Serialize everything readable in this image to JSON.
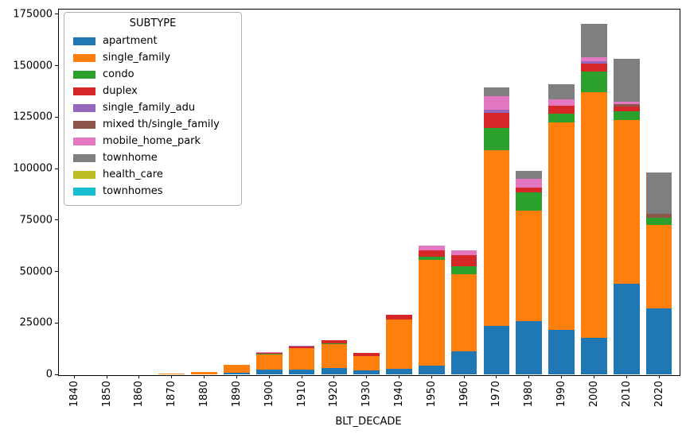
{
  "chart_data": {
    "type": "bar",
    "stacked": true,
    "title": "",
    "xlabel": "BLT_DECADE",
    "ylabel": "",
    "ylim": [
      0,
      177700
    ],
    "grid": false,
    "yticks": [
      0,
      25000,
      50000,
      75000,
      100000,
      125000,
      150000,
      175000
    ],
    "categories": [
      "1840",
      "1850",
      "1860",
      "1870",
      "1880",
      "1890",
      "1900",
      "1910",
      "1920",
      "1930",
      "1940",
      "1950",
      "1960",
      "1970",
      "1980",
      "1990",
      "2000",
      "2010",
      "2020"
    ],
    "legend": {
      "title": "SUBTYPE",
      "position": "upper left"
    },
    "series": [
      {
        "name": "apartment",
        "color": "#1f77b4",
        "values": [
          0,
          0,
          0,
          0,
          0,
          800,
          2200,
          2500,
          3100,
          2000,
          2800,
          4100,
          11400,
          23500,
          25700,
          21500,
          17700,
          44100,
          31900
        ]
      },
      {
        "name": "single_family",
        "color": "#ff7f0e",
        "values": [
          0,
          0,
          0,
          500,
          1100,
          3700,
          7400,
          10100,
          11700,
          7000,
          23700,
          51700,
          37300,
          85500,
          53800,
          101000,
          119300,
          79600,
          40700
        ]
      },
      {
        "name": "condo",
        "color": "#2ca02c",
        "values": [
          0,
          0,
          0,
          0,
          0,
          0,
          300,
          0,
          250,
          0,
          0,
          1200,
          3900,
          10600,
          9000,
          4400,
          10300,
          4300,
          3400
        ]
      },
      {
        "name": "duplex",
        "color": "#d62728",
        "values": [
          0,
          0,
          0,
          0,
          0,
          300,
          600,
          800,
          1550,
          1300,
          2300,
          3200,
          5400,
          7700,
          2300,
          3600,
          3600,
          2300,
          0
        ]
      },
      {
        "name": "single_family_adu",
        "color": "#9467bd",
        "values": [
          0,
          0,
          0,
          0,
          0,
          0,
          0,
          400,
          0,
          0,
          0,
          0,
          0,
          1300,
          0,
          0,
          1300,
          0,
          0
        ]
      },
      {
        "name": "mixed th/single_family",
        "color": "#8c564b",
        "values": [
          0,
          0,
          0,
          0,
          0,
          0,
          0,
          0,
          0,
          0,
          0,
          0,
          0,
          0,
          0,
          0,
          0,
          1200,
          2000
        ]
      },
      {
        "name": "mobile_home_park",
        "color": "#e377c2",
        "values": [
          0,
          0,
          0,
          0,
          0,
          0,
          500,
          0,
          0,
          0,
          0,
          2300,
          2300,
          6800,
          4100,
          3200,
          1800,
          1000,
          0
        ]
      },
      {
        "name": "townhome",
        "color": "#7f7f7f",
        "values": [
          0,
          0,
          0,
          0,
          0,
          0,
          0,
          0,
          0,
          0,
          0,
          0,
          0,
          4100,
          4000,
          7300,
          16200,
          20900,
          20200
        ]
      },
      {
        "name": "health_care",
        "color": "#bcbd22",
        "values": [
          0,
          0,
          0,
          0,
          0,
          0,
          0,
          0,
          0,
          0,
          0,
          0,
          0,
          0,
          0,
          0,
          0,
          0,
          0
        ]
      },
      {
        "name": "townhomes",
        "color": "#17becf",
        "values": [
          0,
          0,
          0,
          0,
          0,
          0,
          0,
          0,
          0,
          0,
          0,
          0,
          0,
          0,
          0,
          0,
          0,
          0,
          0
        ]
      }
    ]
  }
}
